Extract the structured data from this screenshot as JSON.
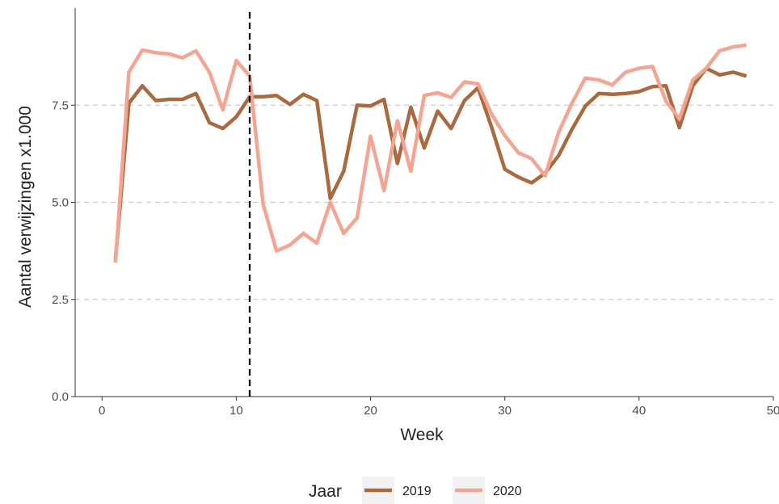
{
  "chart_data": {
    "type": "line",
    "xlabel": "Week",
    "ylabel": "Aantal verwijzingen x1.000",
    "xlim": [
      -2,
      50
    ],
    "ylim": [
      0,
      10
    ],
    "x_ticks": [
      0,
      10,
      20,
      30,
      40,
      50
    ],
    "x_tick_labels": [
      "0",
      "10",
      "20",
      "30",
      "40",
      "50"
    ],
    "y_ticks": [
      0,
      2.5,
      5,
      7.5
    ],
    "y_tick_labels": [
      "0.0",
      "2.5",
      "5.0",
      "7.5"
    ],
    "grid": "horizontal dashed at major y ticks",
    "vline": {
      "x": 11,
      "style": "dashed",
      "color": "#000000"
    },
    "legend": {
      "title": "Jaar",
      "position": "bottom"
    },
    "series": [
      {
        "name": "2019",
        "color": "#a86a3e",
        "x": [
          1,
          2,
          3,
          4,
          5,
          6,
          7,
          8,
          9,
          10,
          11,
          12,
          13,
          14,
          15,
          16,
          17,
          18,
          19,
          20,
          21,
          22,
          23,
          24,
          25,
          26,
          27,
          28,
          29,
          30,
          31,
          32,
          33,
          34,
          35,
          36,
          37,
          38,
          39,
          40,
          41,
          42,
          43,
          44,
          45,
          46,
          47,
          48
        ],
        "y": [
          3.5,
          7.55,
          8.0,
          7.62,
          7.65,
          7.65,
          7.8,
          7.05,
          6.9,
          7.2,
          7.72,
          7.72,
          7.75,
          7.52,
          7.78,
          7.62,
          5.1,
          5.8,
          7.5,
          7.48,
          7.65,
          6.0,
          7.45,
          6.4,
          7.35,
          6.9,
          7.62,
          7.95,
          6.95,
          5.85,
          5.65,
          5.5,
          5.75,
          6.2,
          6.88,
          7.48,
          7.8,
          7.78,
          7.8,
          7.85,
          7.98,
          8.0,
          6.92,
          8.0,
          8.45,
          8.28,
          8.35,
          8.25
        ]
      },
      {
        "name": "2020",
        "color": "#f4a492",
        "x": [
          1,
          2,
          3,
          4,
          5,
          6,
          7,
          8,
          9,
          10,
          11,
          12,
          13,
          14,
          15,
          16,
          17,
          18,
          19,
          20,
          21,
          22,
          23,
          24,
          25,
          26,
          27,
          28,
          29,
          30,
          31,
          32,
          33,
          34,
          35,
          36,
          37,
          38,
          39,
          40,
          41,
          42,
          43,
          44,
          45,
          46,
          47,
          48
        ],
        "y": [
          3.45,
          8.35,
          8.92,
          8.85,
          8.82,
          8.72,
          8.9,
          8.35,
          7.38,
          8.65,
          8.25,
          4.95,
          3.75,
          3.9,
          4.2,
          3.95,
          5.0,
          4.2,
          4.6,
          6.7,
          5.3,
          7.1,
          5.8,
          7.75,
          7.82,
          7.7,
          8.1,
          8.05,
          7.28,
          6.72,
          6.28,
          6.12,
          5.68,
          6.8,
          7.55,
          8.2,
          8.15,
          8.02,
          8.35,
          8.45,
          8.5,
          7.6,
          7.15,
          8.15,
          8.45,
          8.9,
          9.0,
          9.05
        ]
      }
    ]
  }
}
